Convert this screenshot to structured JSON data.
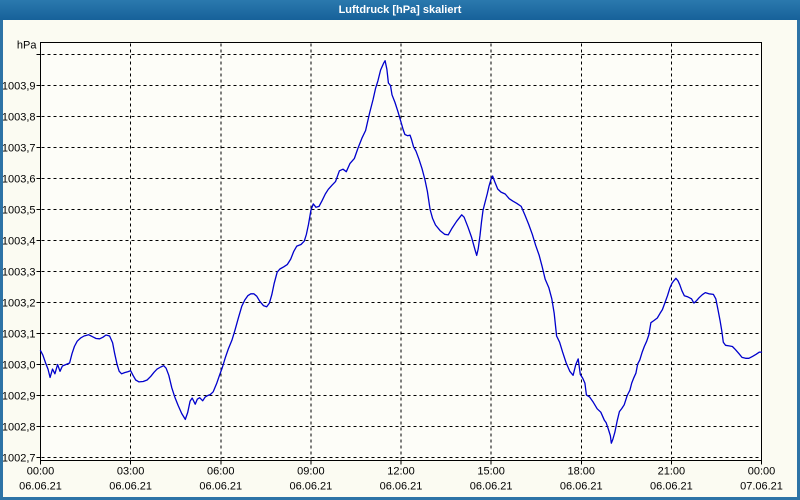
{
  "window": {
    "title": "Luftdruck [hPa] skaliert"
  },
  "colors": {
    "titlebar": "#1e6b9d",
    "frame": "#2d73a6",
    "content_bg": "#fbfbf2",
    "plot_bg": "#fdfdf8",
    "grid": "#000000",
    "axis_border": "#000000",
    "series": "#0000cc",
    "title_text": "#ffffff",
    "label_text": "#000000"
  },
  "chart_data": {
    "type": "line",
    "title": "Luftdruck [hPa] skaliert",
    "xlabel": "",
    "ylabel": "",
    "grid": "dashed",
    "legend": "none",
    "y_axis": {
      "unit": "hPa",
      "min": 1002.7,
      "max": 1004.0,
      "step": 0.1,
      "top_gridline_labeled": false,
      "labels_top_to_bottom": [
        "1003,9",
        "1003,8",
        "1003,7",
        "1003,6",
        "1003,5",
        "1003,4",
        "1003,3",
        "1003,2",
        "1003,1",
        "1003,0",
        "1002,9",
        "1002,8",
        "1002,7"
      ]
    },
    "x_axis": {
      "min_hours": 0,
      "max_hours": 24,
      "tick_interval_hours": 3,
      "ticks": [
        {
          "hour": 0,
          "time": "00:00",
          "date": "06.06.21"
        },
        {
          "hour": 3,
          "time": "03:00",
          "date": "06.06.21"
        },
        {
          "hour": 6,
          "time": "06:00",
          "date": "06.06.21"
        },
        {
          "hour": 9,
          "time": "09:00",
          "date": "06.06.21"
        },
        {
          "hour": 12,
          "time": "12:00",
          "date": "06.06.21"
        },
        {
          "hour": 15,
          "time": "15:00",
          "date": "06.06.21"
        },
        {
          "hour": 18,
          "time": "18:00",
          "date": "06.06.21"
        },
        {
          "hour": 21,
          "time": "21:00",
          "date": "06.06.21"
        },
        {
          "hour": 24,
          "time": "00:00",
          "date": "07.06.21"
        }
      ]
    },
    "series": [
      {
        "name": "Luftdruck",
        "color": "#0000cc",
        "points": [
          [
            0,
            1003.045
          ],
          [
            0.08,
            1003.03
          ],
          [
            0.17,
            1003.005
          ],
          [
            0.25,
            1002.985
          ],
          [
            0.32,
            1002.958
          ],
          [
            0.4,
            1002.985
          ],
          [
            0.48,
            1002.97
          ],
          [
            0.57,
            1003.0
          ],
          [
            0.65,
            1002.978
          ],
          [
            0.73,
            1002.995
          ],
          [
            0.85,
            1003.0
          ],
          [
            0.97,
            1003.005
          ],
          [
            1.05,
            1003.035
          ],
          [
            1.13,
            1003.058
          ],
          [
            1.22,
            1003.075
          ],
          [
            1.33,
            1003.085
          ],
          [
            1.45,
            1003.092
          ],
          [
            1.6,
            1003.096
          ],
          [
            1.72,
            1003.09
          ],
          [
            1.85,
            1003.084
          ],
          [
            1.97,
            1003.083
          ],
          [
            2.08,
            1003.088
          ],
          [
            2.18,
            1003.095
          ],
          [
            2.3,
            1003.092
          ],
          [
            2.4,
            1003.07
          ],
          [
            2.47,
            1003.035
          ],
          [
            2.55,
            1003.0
          ],
          [
            2.62,
            1002.978
          ],
          [
            2.7,
            1002.97
          ],
          [
            2.8,
            1002.974
          ],
          [
            2.92,
            1002.977
          ],
          [
            3.0,
            1002.98
          ],
          [
            3.08,
            1002.965
          ],
          [
            3.17,
            1002.95
          ],
          [
            3.28,
            1002.944
          ],
          [
            3.42,
            1002.945
          ],
          [
            3.55,
            1002.95
          ],
          [
            3.67,
            1002.962
          ],
          [
            3.78,
            1002.975
          ],
          [
            3.88,
            1002.985
          ],
          [
            4.0,
            1002.992
          ],
          [
            4.1,
            1002.996
          ],
          [
            4.18,
            1002.988
          ],
          [
            4.27,
            1002.965
          ],
          [
            4.37,
            1002.925
          ],
          [
            4.47,
            1002.895
          ],
          [
            4.58,
            1002.868
          ],
          [
            4.7,
            1002.842
          ],
          [
            4.82,
            1002.823
          ],
          [
            4.9,
            1002.845
          ],
          [
            4.98,
            1002.882
          ],
          [
            5.05,
            1002.892
          ],
          [
            5.15,
            1002.872
          ],
          [
            5.22,
            1002.888
          ],
          [
            5.3,
            1002.893
          ],
          [
            5.4,
            1002.883
          ],
          [
            5.48,
            1002.895
          ],
          [
            5.57,
            1002.9
          ],
          [
            5.65,
            1002.903
          ],
          [
            5.75,
            1002.912
          ],
          [
            5.87,
            1002.94
          ],
          [
            5.97,
            1002.968
          ],
          [
            6.05,
            1002.99
          ],
          [
            6.15,
            1003.022
          ],
          [
            6.25,
            1003.05
          ],
          [
            6.37,
            1003.078
          ],
          [
            6.47,
            1003.11
          ],
          [
            6.58,
            1003.148
          ],
          [
            6.7,
            1003.188
          ],
          [
            6.8,
            1003.208
          ],
          [
            6.9,
            1003.222
          ],
          [
            7.0,
            1003.228
          ],
          [
            7.1,
            1003.228
          ],
          [
            7.2,
            1003.22
          ],
          [
            7.3,
            1003.204
          ],
          [
            7.42,
            1003.19
          ],
          [
            7.53,
            1003.186
          ],
          [
            7.62,
            1003.198
          ],
          [
            7.7,
            1003.225
          ],
          [
            7.78,
            1003.262
          ],
          [
            7.88,
            1003.298
          ],
          [
            7.97,
            1003.308
          ],
          [
            8.1,
            1003.315
          ],
          [
            8.22,
            1003.323
          ],
          [
            8.33,
            1003.34
          ],
          [
            8.43,
            1003.365
          ],
          [
            8.53,
            1003.382
          ],
          [
            8.67,
            1003.387
          ],
          [
            8.78,
            1003.398
          ],
          [
            8.85,
            1003.42
          ],
          [
            8.92,
            1003.452
          ],
          [
            9.0,
            1003.497
          ],
          [
            9.08,
            1003.518
          ],
          [
            9.17,
            1003.507
          ],
          [
            9.27,
            1003.51
          ],
          [
            9.37,
            1003.528
          ],
          [
            9.48,
            1003.55
          ],
          [
            9.58,
            1003.565
          ],
          [
            9.7,
            1003.578
          ],
          [
            9.82,
            1003.59
          ],
          [
            9.95,
            1003.625
          ],
          [
            10.07,
            1003.63
          ],
          [
            10.18,
            1003.622
          ],
          [
            10.3,
            1003.648
          ],
          [
            10.45,
            1003.665
          ],
          [
            10.57,
            1003.698
          ],
          [
            10.7,
            1003.73
          ],
          [
            10.82,
            1003.755
          ],
          [
            10.95,
            1003.81
          ],
          [
            11.07,
            1003.855
          ],
          [
            11.15,
            1003.89
          ],
          [
            11.23,
            1003.915
          ],
          [
            11.32,
            1003.95
          ],
          [
            11.42,
            1003.972
          ],
          [
            11.47,
            1003.98
          ],
          [
            11.53,
            1003.952
          ],
          [
            11.58,
            1003.908
          ],
          [
            11.65,
            1003.9
          ],
          [
            11.7,
            1003.87
          ],
          [
            11.8,
            1003.845
          ],
          [
            11.9,
            1003.815
          ],
          [
            12.0,
            1003.782
          ],
          [
            12.07,
            1003.758
          ],
          [
            12.13,
            1003.742
          ],
          [
            12.22,
            1003.738
          ],
          [
            12.3,
            1003.74
          ],
          [
            12.35,
            1003.726
          ],
          [
            12.42,
            1003.702
          ],
          [
            12.5,
            1003.688
          ],
          [
            12.6,
            1003.662
          ],
          [
            12.7,
            1003.632
          ],
          [
            12.8,
            1003.595
          ],
          [
            12.88,
            1003.558
          ],
          [
            12.97,
            1003.5
          ],
          [
            13.05,
            1003.472
          ],
          [
            13.15,
            1003.45
          ],
          [
            13.3,
            1003.432
          ],
          [
            13.45,
            1003.42
          ],
          [
            13.57,
            1003.418
          ],
          [
            13.7,
            1003.44
          ],
          [
            13.85,
            1003.462
          ],
          [
            14.02,
            1003.483
          ],
          [
            14.1,
            1003.475
          ],
          [
            14.23,
            1003.443
          ],
          [
            14.35,
            1003.41
          ],
          [
            14.47,
            1003.368
          ],
          [
            14.52,
            1003.352
          ],
          [
            14.57,
            1003.373
          ],
          [
            14.63,
            1003.416
          ],
          [
            14.68,
            1003.46
          ],
          [
            14.73,
            1003.497
          ],
          [
            14.8,
            1003.524
          ],
          [
            14.87,
            1003.55
          ],
          [
            14.93,
            1003.575
          ],
          [
            15.0,
            1003.598
          ],
          [
            15.05,
            1003.608
          ],
          [
            15.12,
            1003.59
          ],
          [
            15.22,
            1003.566
          ],
          [
            15.33,
            1003.556
          ],
          [
            15.47,
            1003.55
          ],
          [
            15.6,
            1003.535
          ],
          [
            15.72,
            1003.527
          ],
          [
            15.85,
            1003.52
          ],
          [
            16.0,
            1003.51
          ],
          [
            16.12,
            1003.483
          ],
          [
            16.25,
            1003.452
          ],
          [
            16.37,
            1003.42
          ],
          [
            16.48,
            1003.385
          ],
          [
            16.6,
            1003.352
          ],
          [
            16.7,
            1003.315
          ],
          [
            16.8,
            1003.275
          ],
          [
            16.92,
            1003.248
          ],
          [
            17.02,
            1003.212
          ],
          [
            17.1,
            1003.165
          ],
          [
            17.18,
            1003.092
          ],
          [
            17.28,
            1003.072
          ],
          [
            17.38,
            1003.04
          ],
          [
            17.5,
            1003.005
          ],
          [
            17.62,
            1002.978
          ],
          [
            17.73,
            1002.965
          ],
          [
            17.82,
            1003.0
          ],
          [
            17.9,
            1003.018
          ],
          [
            17.97,
            1002.968
          ],
          [
            18.05,
            1002.955
          ],
          [
            18.12,
            1002.94
          ],
          [
            18.17,
            1002.902
          ],
          [
            18.28,
            1002.895
          ],
          [
            18.4,
            1002.878
          ],
          [
            18.53,
            1002.857
          ],
          [
            18.65,
            1002.846
          ],
          [
            18.77,
            1002.82
          ],
          [
            18.83,
            1002.812
          ],
          [
            18.9,
            1002.792
          ],
          [
            18.97,
            1002.77
          ],
          [
            19.0,
            1002.746
          ],
          [
            19.05,
            1002.758
          ],
          [
            19.12,
            1002.782
          ],
          [
            19.2,
            1002.82
          ],
          [
            19.27,
            1002.848
          ],
          [
            19.35,
            1002.858
          ],
          [
            19.43,
            1002.87
          ],
          [
            19.53,
            1002.9
          ],
          [
            19.62,
            1002.917
          ],
          [
            19.68,
            1002.94
          ],
          [
            19.75,
            1002.957
          ],
          [
            19.82,
            1002.972
          ],
          [
            19.88,
            1003.002
          ],
          [
            19.95,
            1003.015
          ],
          [
            20.03,
            1003.04
          ],
          [
            20.1,
            1003.058
          ],
          [
            20.18,
            1003.075
          ],
          [
            20.25,
            1003.095
          ],
          [
            20.32,
            1003.135
          ],
          [
            20.42,
            1003.142
          ],
          [
            20.53,
            1003.15
          ],
          [
            20.62,
            1003.165
          ],
          [
            20.7,
            1003.177
          ],
          [
            20.78,
            1003.198
          ],
          [
            20.87,
            1003.222
          ],
          [
            20.95,
            1003.247
          ],
          [
            21.02,
            1003.262
          ],
          [
            21.08,
            1003.27
          ],
          [
            21.15,
            1003.278
          ],
          [
            21.22,
            1003.27
          ],
          [
            21.28,
            1003.257
          ],
          [
            21.35,
            1003.238
          ],
          [
            21.43,
            1003.222
          ],
          [
            21.55,
            1003.218
          ],
          [
            21.67,
            1003.212
          ],
          [
            21.75,
            1003.198
          ],
          [
            21.83,
            1003.205
          ],
          [
            21.92,
            1003.215
          ],
          [
            22.03,
            1003.225
          ],
          [
            22.13,
            1003.232
          ],
          [
            22.25,
            1003.228
          ],
          [
            22.4,
            1003.226
          ],
          [
            22.48,
            1003.212
          ],
          [
            22.55,
            1003.178
          ],
          [
            22.62,
            1003.143
          ],
          [
            22.68,
            1003.108
          ],
          [
            22.73,
            1003.072
          ],
          [
            22.8,
            1003.062
          ],
          [
            22.92,
            1003.06
          ],
          [
            23.03,
            1003.058
          ],
          [
            23.13,
            1003.048
          ],
          [
            23.25,
            1003.035
          ],
          [
            23.35,
            1003.023
          ],
          [
            23.47,
            1003.02
          ],
          [
            23.58,
            1003.02
          ],
          [
            23.7,
            1003.026
          ],
          [
            23.82,
            1003.033
          ],
          [
            23.93,
            1003.04
          ],
          [
            24.0,
            1003.04
          ]
        ]
      }
    ]
  }
}
